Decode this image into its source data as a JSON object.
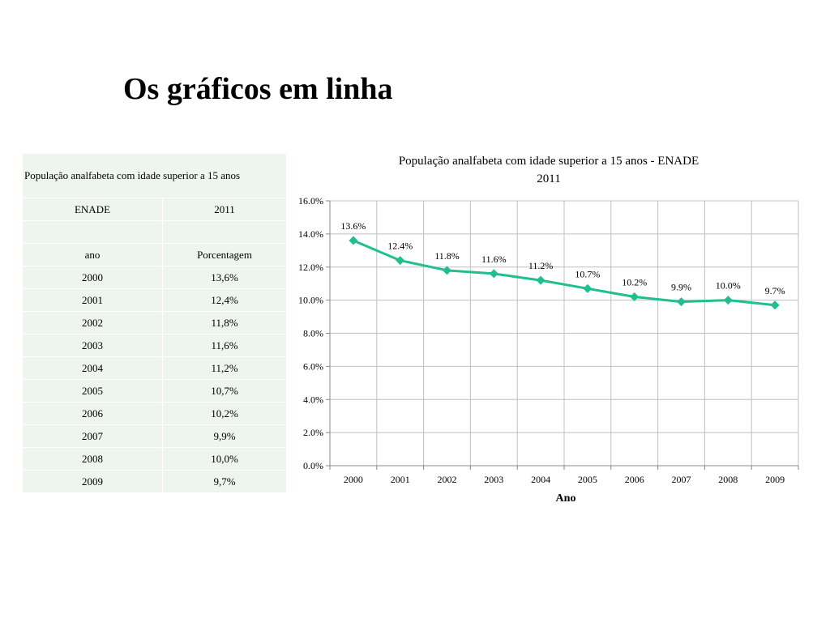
{
  "slide": {
    "title": "Os gráficos em linha"
  },
  "table": {
    "caption": "População analfabeta com idade superior a 15 anos",
    "subheader": [
      "ENADE",
      "2011"
    ],
    "blank_row": [
      "",
      ""
    ],
    "header": [
      "ano",
      "Porcentagem"
    ],
    "rows": [
      [
        "2000",
        "13,6%"
      ],
      [
        "2001",
        "12,4%"
      ],
      [
        "2002",
        "11,8%"
      ],
      [
        "2003",
        "11,6%"
      ],
      [
        "2004",
        "11,2%"
      ],
      [
        "2005",
        "10,7%"
      ],
      [
        "2006",
        "10,2%"
      ],
      [
        "2007",
        "9,9%"
      ],
      [
        "2008",
        "10,0%"
      ],
      [
        "2009",
        "9,7%"
      ]
    ]
  },
  "chart_data": {
    "type": "line",
    "title_lines": [
      "População analfabeta com idade superior a 15 anos  - ENADE",
      "2011"
    ],
    "xlabel": "Ano",
    "ylabel": "",
    "categories": [
      "2000",
      "2001",
      "2002",
      "2003",
      "2004",
      "2005",
      "2006",
      "2007",
      "2008",
      "2009"
    ],
    "series": [
      {
        "values": [
          13.6,
          12.4,
          11.8,
          11.6,
          11.2,
          10.7,
          10.2,
          9.9,
          10.0,
          9.7
        ]
      }
    ],
    "data_labels": [
      "13.6%",
      "12.4%",
      "11.8%",
      "11.6%",
      "11.2%",
      "10.7%",
      "10.2%",
      "9.9%",
      "10.0%",
      "9.7%"
    ],
    "yticks": [
      "0.0%",
      "2.0%",
      "4.0%",
      "6.0%",
      "8.0%",
      "10.0%",
      "12.0%",
      "14.0%",
      "16.0%"
    ],
    "ylim": [
      0,
      16
    ],
    "grid": true,
    "legend": "none",
    "colors": {
      "line": "#1fbf8f",
      "grid": "#bfbfbf",
      "axis": "#888888"
    }
  }
}
